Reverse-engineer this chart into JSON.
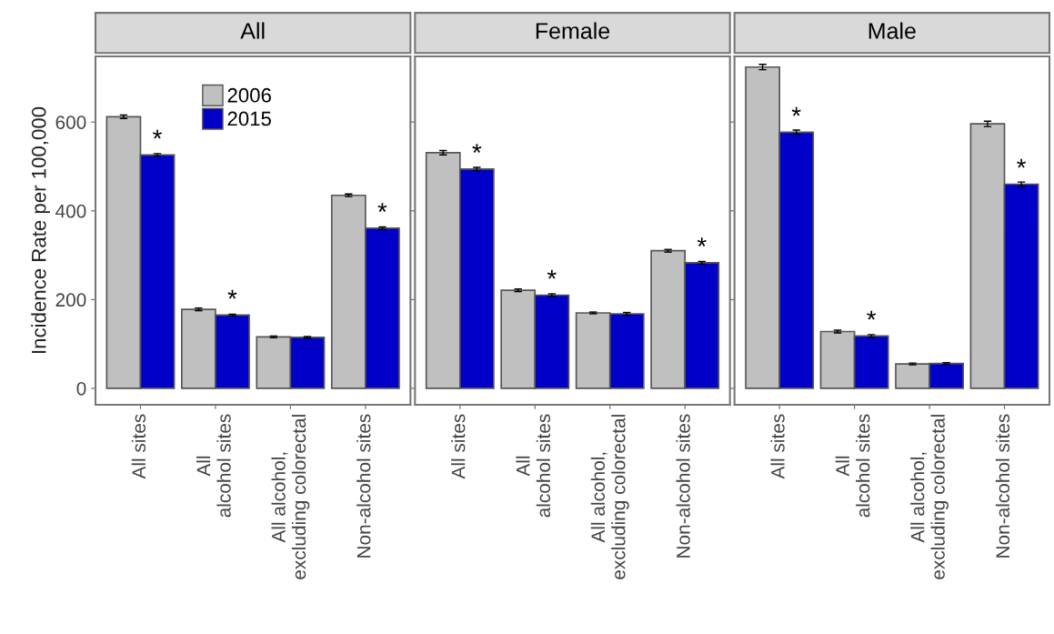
{
  "chart_data": [
    {
      "type": "bar",
      "title": "All",
      "ylabel": "Incidence Rate per 100,000",
      "categories": [
        "All sites",
        "All\nalcohol sites",
        "All alcohol,\nexcluding colorectal",
        "Non-alcohol sites"
      ],
      "ylim": [
        -37,
        748
      ],
      "yticks": [
        0,
        200,
        400,
        600
      ],
      "grid": false,
      "legend": "top",
      "series": [
        {
          "name": "2006",
          "color": "#c0c0c0",
          "values": [
            612,
            178,
            116,
            435
          ],
          "errors": [
            4,
            3,
            2,
            3
          ]
        },
        {
          "name": "2015",
          "color": "#0000c8",
          "values": [
            526,
            165,
            115,
            361
          ],
          "errors": [
            3,
            2,
            2,
            3
          ]
        }
      ],
      "annotations": [
        {
          "text": "*",
          "x": "All sites",
          "y": 526
        },
        {
          "text": "*",
          "x": "All\nalcohol sites",
          "y": 165
        },
        {
          "text": "*",
          "x": "Non-alcohol sites",
          "y": 361
        }
      ]
    },
    {
      "type": "bar",
      "title": "Female",
      "categories": [
        "All sites",
        "All\nalcohol sites",
        "All alcohol,\nexcluding colorectal",
        "Non-alcohol sites"
      ],
      "ylim": [
        -37,
        748
      ],
      "yticks": [
        0,
        200,
        400,
        600
      ],
      "grid": false,
      "tick_labels": "x",
      "series": [
        {
          "color": "#c0c0c0",
          "values": [
            531,
            221,
            170,
            310
          ],
          "errors": [
            5,
            3,
            2,
            3
          ]
        },
        {
          "color": "#0000c8",
          "values": [
            494,
            210,
            168,
            283
          ],
          "errors": [
            4,
            3,
            3,
            3
          ]
        }
      ],
      "annotations": [
        {
          "text": "*",
          "x": "All sites",
          "y": 494
        },
        {
          "text": "*",
          "x": "All\nalcohol sites",
          "y": 210
        },
        {
          "text": "*",
          "x": "Non-alcohol sites",
          "y": 283
        }
      ]
    },
    {
      "type": "bar",
      "title": "Male",
      "categories": [
        "All sites",
        "All\nalcohol sites",
        "All alcohol,\nexcluding colorectal",
        "Non-alcohol sites"
      ],
      "ylim": [
        -37,
        748
      ],
      "yticks": [
        0,
        200,
        400,
        600
      ],
      "grid": false,
      "tick_labels": "x",
      "series": [
        {
          "color": "#c0c0c0",
          "values": [
            724,
            128,
            55,
            596
          ],
          "errors": [
            6,
            3,
            2,
            6
          ]
        },
        {
          "color": "#0000c8",
          "values": [
            577,
            118,
            56,
            460
          ],
          "errors": [
            5,
            3,
            2,
            5
          ]
        }
      ],
      "annotations": [
        {
          "text": "*",
          "x": "All sites",
          "y": 577
        },
        {
          "text": "*",
          "x": "All\nalcohol sites",
          "y": 118
        },
        {
          "text": "*",
          "x": "Non-alcohol sites",
          "y": 460
        }
      ]
    }
  ]
}
